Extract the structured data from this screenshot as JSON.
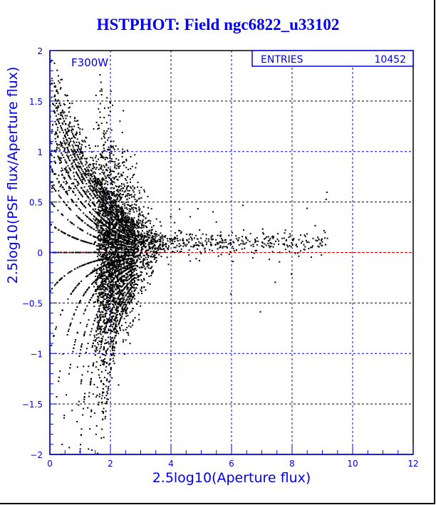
{
  "title": "HSTPHOT: Field ngc6822_u33102",
  "chart_data": {
    "type": "scatter",
    "title": "HSTPHOT: Field ngc6822_u33102",
    "filter_label": "F300W",
    "xlabel": "2.5log10(Aperture flux)",
    "ylabel": "2.5log10(PSF flux/Aperture flux)",
    "xlim": [
      0,
      12
    ],
    "ylim": [
      -2,
      2
    ],
    "xticks": [
      "0",
      "2",
      "4",
      "6",
      "8",
      "10",
      "12"
    ],
    "yticks": [
      "-2",
      "-1.5",
      "-1",
      "-0.5",
      "0",
      "0.5",
      "1",
      "1.5",
      "2"
    ],
    "grid": true,
    "reference_line_y": 0,
    "stats": {
      "label": "ENTRIES",
      "value": "10452"
    },
    "colors": {
      "text": "#0000ee",
      "points": "#000000",
      "reference": "#ff0000"
    },
    "distribution_note": "Points rendered procedurally: fan of quantized curves for x<2.8, dense cluster at x≈1.5–3 with y spread ±1, tail near y≈0.1 extending to x≈9"
  }
}
